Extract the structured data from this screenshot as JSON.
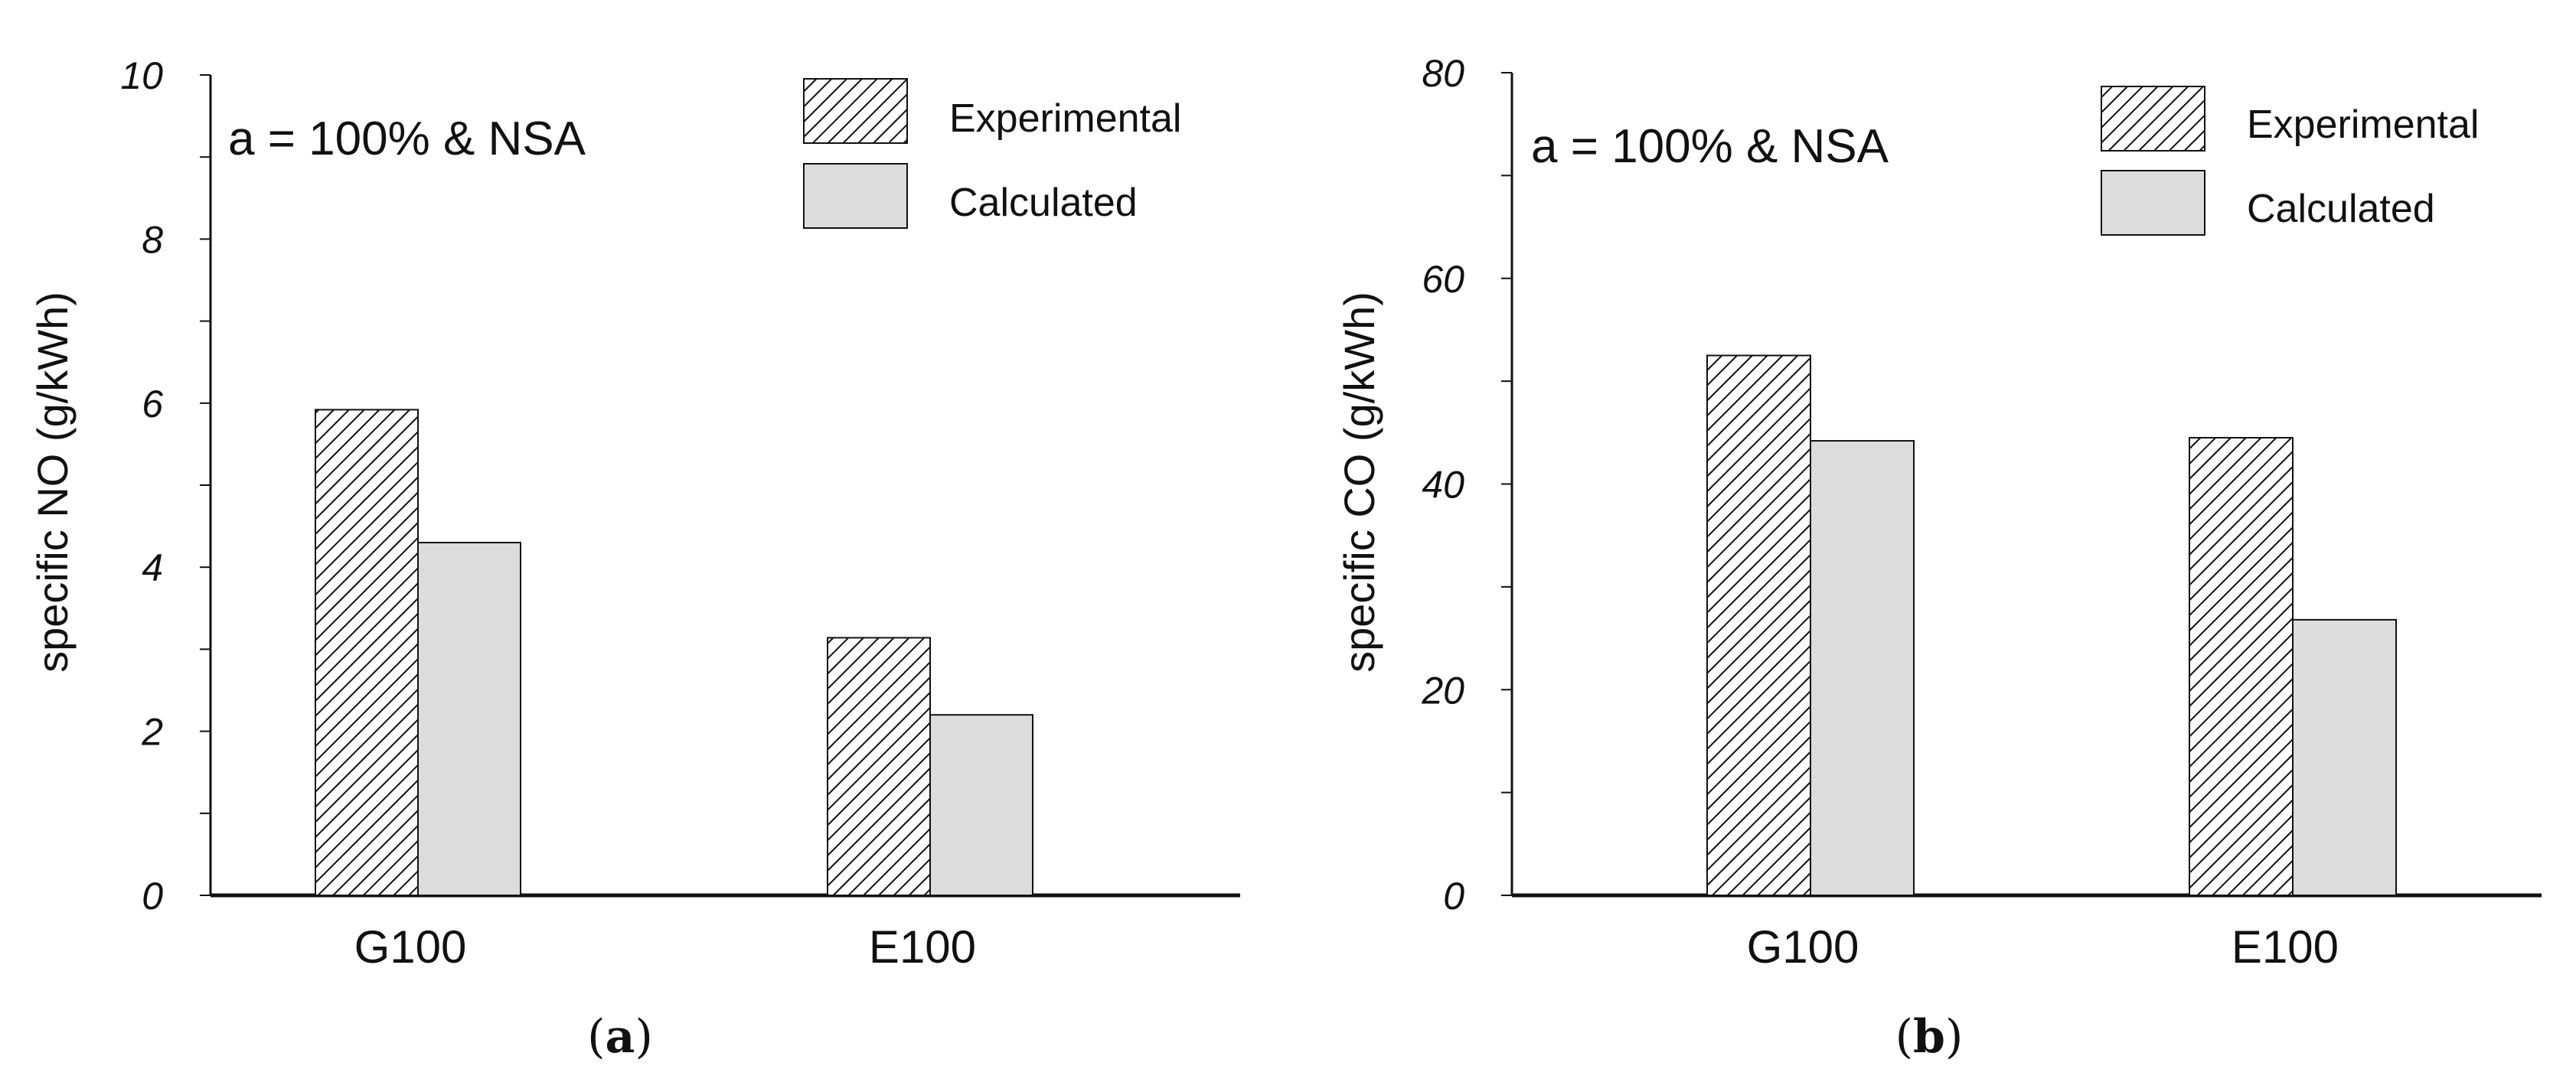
{
  "chart_data": [
    {
      "type": "bar",
      "panel": "a",
      "categories": [
        "G100",
        "E100"
      ],
      "series": [
        {
          "name": "Experimental",
          "values": [
            5.92,
            3.14
          ]
        },
        {
          "name": "Calculated",
          "values": [
            4.3,
            2.2
          ]
        }
      ],
      "ylabel": "specific NO (g/kWh)",
      "ylim": [
        0,
        10
      ],
      "yticks": [
        0,
        2,
        4,
        6,
        8,
        10
      ],
      "annotation": "a = 100% & NSA",
      "legend_position": "top-right"
    },
    {
      "type": "bar",
      "panel": "b",
      "categories": [
        "G100",
        "E100"
      ],
      "series": [
        {
          "name": "Experimental",
          "values": [
            52.5,
            44.5
          ]
        },
        {
          "name": "Calculated",
          "values": [
            44.2,
            26.8
          ]
        }
      ],
      "ylabel": "specific CO (g/kWh)",
      "ylim": [
        0,
        80
      ],
      "yticks": [
        0,
        20,
        40,
        60,
        80
      ],
      "annotation": "a = 100% & NSA",
      "legend_position": "top-right"
    }
  ],
  "panel_labels": [
    {
      "open": "(",
      "letter": "a",
      "close": ")"
    },
    {
      "open": "(",
      "letter": "b",
      "close": ")"
    }
  ],
  "colors": {
    "calculated": "#dcdcdc",
    "hatch": "#111111",
    "axis": "#111111"
  }
}
